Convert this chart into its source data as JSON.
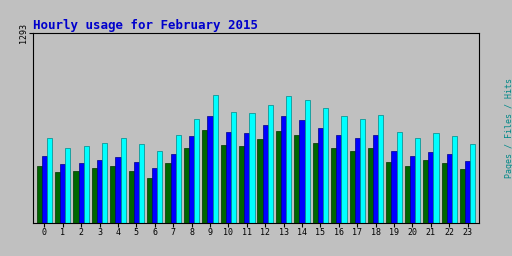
{
  "title": "Hourly usage for February 2015",
  "title_color": "#0000cc",
  "title_fontsize": 9,
  "hours": [
    0,
    1,
    2,
    3,
    4,
    5,
    6,
    7,
    8,
    9,
    10,
    11,
    12,
    13,
    14,
    15,
    16,
    17,
    18,
    19,
    20,
    21,
    22,
    23
  ],
  "cyan_bars": [
    580,
    510,
    525,
    545,
    580,
    540,
    490,
    600,
    710,
    870,
    755,
    750,
    805,
    865,
    835,
    780,
    730,
    705,
    735,
    620,
    575,
    610,
    595,
    540
  ],
  "blue_bars": [
    455,
    400,
    410,
    425,
    450,
    415,
    375,
    470,
    590,
    730,
    620,
    615,
    665,
    730,
    700,
    645,
    600,
    575,
    600,
    490,
    455,
    480,
    470,
    420
  ],
  "green_bars": [
    390,
    345,
    350,
    375,
    390,
    350,
    305,
    405,
    510,
    635,
    530,
    525,
    570,
    625,
    600,
    545,
    510,
    490,
    510,
    415,
    388,
    425,
    408,
    368
  ],
  "ymax": 1293,
  "ytick_val": 1293,
  "color_hits": "#00ffff",
  "color_files": "#0000ff",
  "color_pages": "#006600",
  "color_hits_edge": "#008888",
  "color_files_edge": "#000088",
  "color_pages_edge": "#003300",
  "bg_color": "#c0c0c0",
  "bar_width": 0.28,
  "right_label": "Pages / Files / Hits",
  "right_label_color": "#008888"
}
